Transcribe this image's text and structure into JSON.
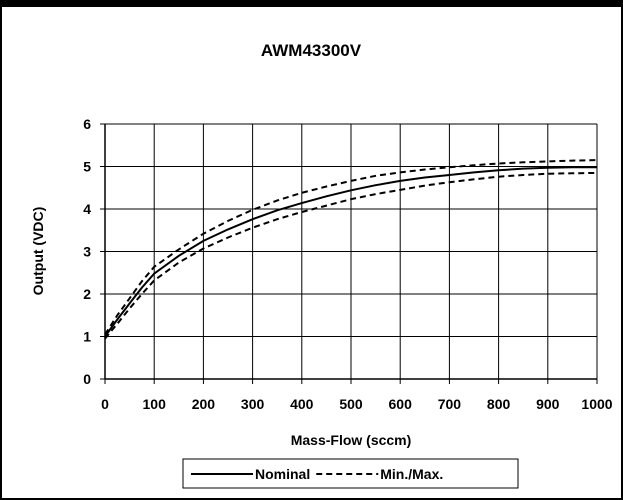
{
  "chart_data": {
    "type": "line",
    "title": "AWM43300V",
    "xlabel": "Mass-Flow (sccm)",
    "ylabel": "Output (VDC)",
    "xlim": [
      0,
      1000
    ],
    "ylim": [
      0,
      6
    ],
    "xticks": [
      0,
      100,
      200,
      300,
      400,
      500,
      600,
      700,
      800,
      900,
      1000
    ],
    "yticks": [
      0,
      1,
      2,
      3,
      4,
      5,
      6
    ],
    "grid": true,
    "legend_position": "bottom",
    "x": [
      0,
      25,
      50,
      75,
      100,
      150,
      200,
      250,
      300,
      350,
      400,
      450,
      500,
      550,
      600,
      650,
      700,
      750,
      800,
      850,
      900,
      950,
      1000
    ],
    "series": [
      {
        "name": "Nominal",
        "style": "solid",
        "color": "#000000",
        "values": [
          1.0,
          1.4,
          1.78,
          2.15,
          2.48,
          2.9,
          3.25,
          3.52,
          3.76,
          3.97,
          4.14,
          4.3,
          4.44,
          4.56,
          4.66,
          4.74,
          4.8,
          4.86,
          4.91,
          4.95,
          4.97,
          4.98,
          4.98
        ]
      },
      {
        "name": "Min./Max.",
        "style": "dashed",
        "color": "#000000",
        "values": [
          1.05,
          1.5,
          1.9,
          2.3,
          2.64,
          3.05,
          3.42,
          3.72,
          3.98,
          4.2,
          4.38,
          4.53,
          4.66,
          4.78,
          4.86,
          4.93,
          4.98,
          5.03,
          5.07,
          5.1,
          5.12,
          5.14,
          5.15
        ]
      },
      {
        "name": "",
        "style": "dashed",
        "color": "#000000",
        "values": [
          0.95,
          1.3,
          1.66,
          2.0,
          2.32,
          2.74,
          3.07,
          3.33,
          3.56,
          3.76,
          3.93,
          4.08,
          4.23,
          4.35,
          4.45,
          4.55,
          4.63,
          4.7,
          4.76,
          4.8,
          4.83,
          4.84,
          4.85
        ]
      }
    ]
  }
}
